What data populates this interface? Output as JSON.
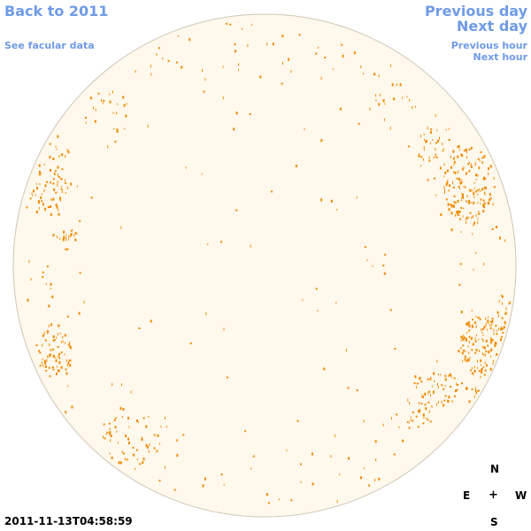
{
  "nav": {
    "back": "Back to 2011",
    "facular": "See facular data",
    "previous_day": "Previous day",
    "next_day": "Next day",
    "previous_hour": "Previous hour",
    "next_hour": "Next hour"
  },
  "timestamp": "2011-11-13T04:58:59",
  "compass": {
    "north": "N",
    "east": "E",
    "center": "+",
    "west": "W",
    "south": "S"
  },
  "colors": {
    "disk_fill": "#fff8ec",
    "disk_edge": "#cfc6b8",
    "facula": "#f08a00",
    "link": "#6f9be6"
  }
}
